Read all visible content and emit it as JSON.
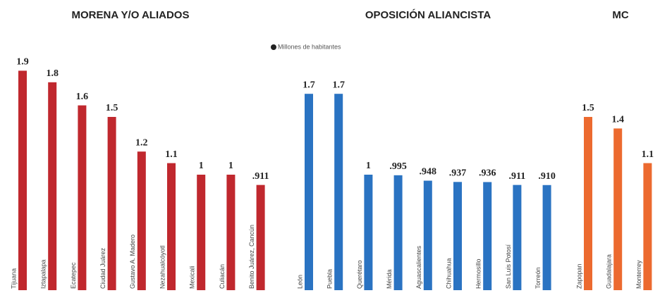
{
  "chart_data": [
    {
      "type": "bar",
      "title": "MORENA Y/O ALIADOS",
      "color": "#c0282e",
      "ylim": [
        0,
        2
      ],
      "categories": [
        "Tijuana",
        "Iztapalapa",
        "Ecatepec",
        "Ciudad Juárez",
        "Gustavo A. Madero",
        "Nezahualcóyotl",
        "Mexicali",
        "Culiacán",
        "Benito Juárez, Cancún"
      ],
      "values": [
        1.9,
        1.8,
        1.6,
        1.5,
        1.2,
        1.1,
        1,
        1,
        0.911
      ],
      "value_labels": [
        "1.9",
        "1.8",
        "1.6",
        "1.5",
        "1.2",
        "1.1",
        "1",
        "1",
        ".911"
      ]
    },
    {
      "type": "bar",
      "title": "OPOSICIÓN ALIANCISTA",
      "legend": "Millones de habitantes",
      "color": "#2a73c2",
      "ylim": [
        0,
        2
      ],
      "categories": [
        "León",
        "Puebla",
        "Querétaro",
        "Mérida",
        "Aguascalientes",
        "Chihuahua",
        "Hermosillo",
        "San Luis Potosí",
        "Torreón"
      ],
      "values": [
        1.7,
        1.7,
        1,
        0.995,
        0.948,
        0.937,
        0.936,
        0.911,
        0.91
      ],
      "value_labels": [
        "1.7",
        "1.7",
        "1",
        ".995",
        ".948",
        ".937",
        ".936",
        ".911",
        ".910"
      ]
    },
    {
      "type": "bar",
      "title": "MC",
      "color": "#ec6a2f",
      "ylim": [
        0,
        2
      ],
      "categories": [
        "Zapopan",
        "Guadalajara",
        "Monterrey"
      ],
      "values": [
        1.5,
        1.4,
        1.1
      ],
      "value_labels": [
        "1.5",
        "1.4",
        "1.1"
      ]
    }
  ]
}
